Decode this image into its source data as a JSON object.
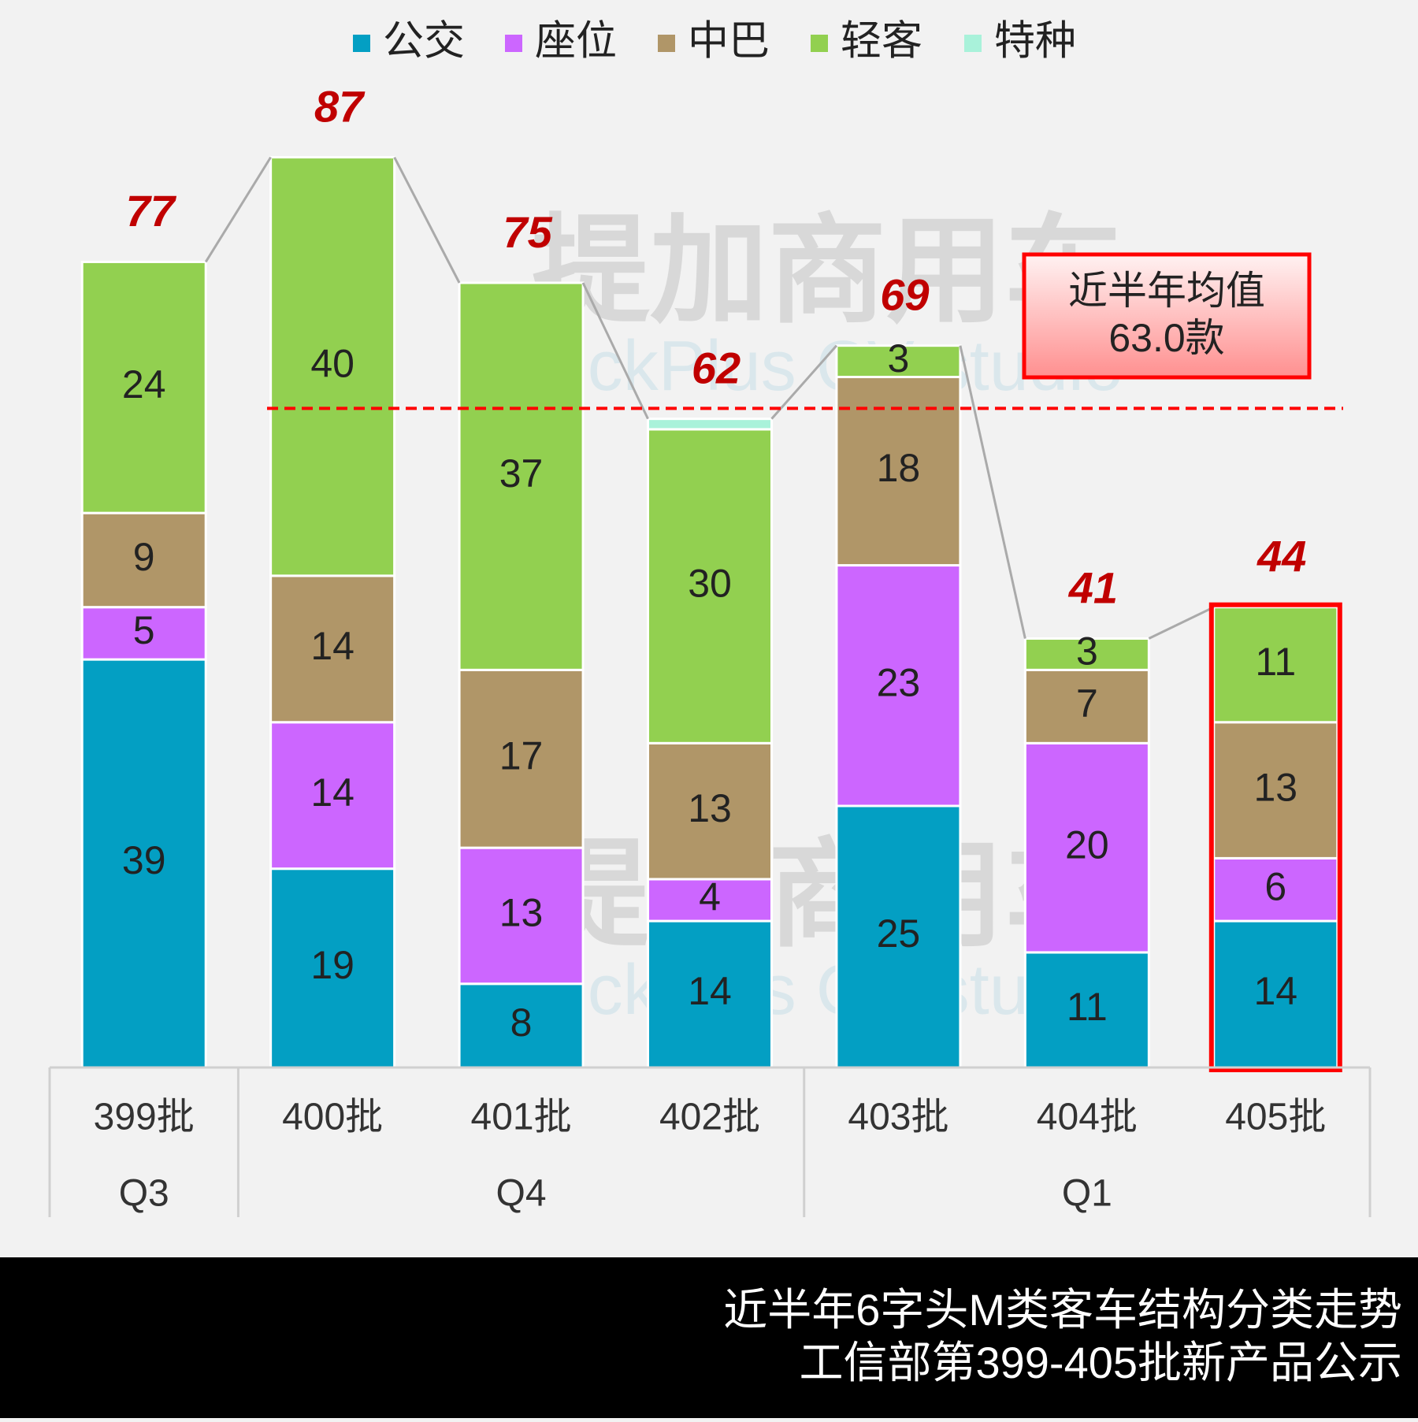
{
  "chart_data": {
    "type": "stacked_bar",
    "categories": [
      "399批",
      "400批",
      "401批",
      "402批",
      "403批",
      "404批",
      "405批"
    ],
    "groups": [
      "Q3",
      "Q4",
      "Q1"
    ],
    "group_sizes": [
      1,
      3,
      3
    ],
    "series": [
      {
        "name": "公交",
        "color": "#039fc3",
        "values": [
          39,
          19,
          8,
          14,
          25,
          11,
          14
        ],
        "labels": true
      },
      {
        "name": "座位",
        "color": "#cc66ff",
        "values": [
          5,
          14,
          13,
          4,
          23,
          20,
          6
        ],
        "labels": true
      },
      {
        "name": "中巴",
        "color": "#b09668",
        "values": [
          9,
          14,
          17,
          13,
          18,
          7,
          13
        ],
        "labels": true
      },
      {
        "name": "轻客",
        "color": "#92d050",
        "values": [
          24,
          40,
          37,
          30,
          3,
          3,
          11
        ],
        "labels": true
      },
      {
        "name": "特种",
        "color": "#a9f2da",
        "values": [
          0,
          0,
          0,
          1,
          0,
          0,
          0
        ],
        "labels": false
      }
    ],
    "totals": [
      77,
      87,
      75,
      62,
      69,
      41,
      44
    ],
    "ylim": [
      0,
      100
    ],
    "average": {
      "value": 63.0,
      "label": "63.0款"
    },
    "average_title": "近半年均值",
    "highlight_index": 6,
    "watermark": {
      "title": "提加商用车",
      "subtitle": "TruckPlus CV studio"
    },
    "footer": [
      "近半年6字头M类客车结构分类走势",
      "工信部第399-405批新产品公示"
    ]
  }
}
